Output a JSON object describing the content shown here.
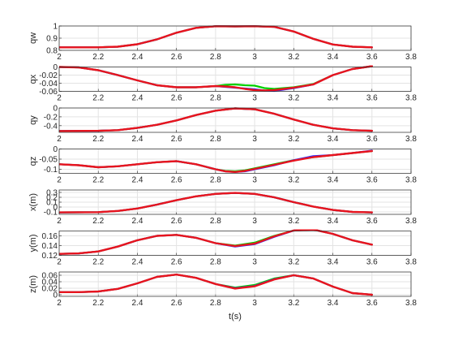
{
  "chart_data": {
    "type": "line",
    "xlabel": "t(s)",
    "xlim": [
      2,
      3.8
    ],
    "xticks": [
      "2",
      "2.2",
      "2.4",
      "2.6",
      "2.8",
      "3",
      "3.2",
      "3.4",
      "3.6",
      "3.8"
    ],
    "grid": true,
    "series_colors": {
      "green": "#00d000",
      "blue": "#2a2aff",
      "red": "#e8141e"
    },
    "panels": [
      {
        "ylabel": "qw",
        "ylim": [
          0.8,
          1
        ],
        "yticks": [
          "0.8",
          "0.9",
          "1"
        ],
        "x": [
          2.0,
          2.2,
          2.3,
          2.4,
          2.5,
          2.6,
          2.7,
          2.8,
          2.9,
          3.0,
          3.1,
          3.2,
          3.3,
          3.4,
          3.5,
          3.6
        ],
        "series": [
          {
            "color": "green",
            "values": [
              0.825,
              0.825,
              0.83,
              0.85,
              0.89,
              0.945,
              0.985,
              0.998,
              0.997,
              0.998,
              0.993,
              0.955,
              0.895,
              0.848,
              0.83,
              0.825
            ]
          },
          {
            "color": "blue",
            "values": [
              0.825,
              0.825,
              0.83,
              0.85,
              0.89,
              0.945,
              0.985,
              0.998,
              0.997,
              0.998,
              0.993,
              0.955,
              0.895,
              0.848,
              0.83,
              0.825
            ]
          },
          {
            "color": "red",
            "values": [
              0.825,
              0.825,
              0.83,
              0.85,
              0.89,
              0.945,
              0.985,
              0.998,
              0.997,
              0.998,
              0.993,
              0.955,
              0.895,
              0.848,
              0.83,
              0.825
            ]
          }
        ]
      },
      {
        "ylabel": "qx",
        "ylim": [
          -0.06,
          0
        ],
        "yticks": [
          "-0.06",
          "-0.04",
          "-0.02",
          "0"
        ],
        "x": [
          2.0,
          2.1,
          2.2,
          2.3,
          2.4,
          2.5,
          2.6,
          2.7,
          2.8,
          2.85,
          2.9,
          2.95,
          3.0,
          3.05,
          3.1,
          3.2,
          3.3,
          3.4,
          3.5,
          3.6
        ],
        "series": [
          {
            "color": "green",
            "values": [
              0.0,
              -0.001,
              -0.008,
              -0.02,
              -0.033,
              -0.045,
              -0.05,
              -0.05,
              -0.047,
              -0.044,
              -0.043,
              -0.045,
              -0.046,
              -0.052,
              -0.054,
              -0.05,
              -0.042,
              -0.02,
              -0.005,
              0.002
            ]
          },
          {
            "color": "blue",
            "values": [
              0.0,
              -0.001,
              -0.008,
              -0.02,
              -0.033,
              -0.045,
              -0.05,
              -0.05,
              -0.047,
              -0.049,
              -0.051,
              -0.053,
              -0.055,
              -0.058,
              -0.059,
              -0.052,
              -0.043,
              -0.02,
              -0.005,
              0.002
            ]
          },
          {
            "color": "red",
            "values": [
              0.0,
              -0.001,
              -0.008,
              -0.02,
              -0.033,
              -0.045,
              -0.05,
              -0.05,
              -0.047,
              -0.048,
              -0.05,
              -0.054,
              -0.057,
              -0.058,
              -0.057,
              -0.051,
              -0.043,
              -0.02,
              -0.005,
              0.002
            ]
          }
        ]
      },
      {
        "ylabel": "qy",
        "ylim": [
          -0.55,
          0
        ],
        "yticks": [
          "-0.4",
          "-0.2",
          "0"
        ],
        "x": [
          2.0,
          2.2,
          2.3,
          2.4,
          2.5,
          2.6,
          2.7,
          2.8,
          2.9,
          3.0,
          3.1,
          3.2,
          3.3,
          3.4,
          3.5,
          3.6
        ],
        "series": [
          {
            "color": "green",
            "values": [
              -0.52,
              -0.515,
              -0.5,
              -0.45,
              -0.38,
              -0.28,
              -0.16,
              -0.06,
              -0.01,
              -0.03,
              -0.13,
              -0.26,
              -0.38,
              -0.46,
              -0.5,
              -0.515
            ]
          },
          {
            "color": "blue",
            "values": [
              -0.52,
              -0.515,
              -0.5,
              -0.45,
              -0.38,
              -0.28,
              -0.16,
              -0.06,
              -0.01,
              -0.03,
              -0.13,
              -0.26,
              -0.38,
              -0.46,
              -0.5,
              -0.515
            ]
          },
          {
            "color": "red",
            "values": [
              -0.52,
              -0.515,
              -0.5,
              -0.45,
              -0.38,
              -0.28,
              -0.16,
              -0.06,
              -0.01,
              -0.03,
              -0.13,
              -0.26,
              -0.38,
              -0.46,
              -0.5,
              -0.515
            ]
          }
        ]
      },
      {
        "ylabel": "qz",
        "ylim": [
          -0.12,
          0
        ],
        "yticks": [
          "-0.1",
          "-0.05",
          "0"
        ],
        "x": [
          2.0,
          2.1,
          2.2,
          2.3,
          2.4,
          2.5,
          2.6,
          2.7,
          2.8,
          2.85,
          2.9,
          2.95,
          3.0,
          3.1,
          3.2,
          3.3,
          3.4,
          3.5,
          3.6
        ],
        "series": [
          {
            "color": "green",
            "values": [
              -0.075,
              -0.08,
              -0.09,
              -0.085,
              -0.075,
              -0.065,
              -0.06,
              -0.075,
              -0.1,
              -0.108,
              -0.11,
              -0.105,
              -0.095,
              -0.075,
              -0.055,
              -0.04,
              -0.03,
              -0.02,
              -0.01
            ]
          },
          {
            "color": "blue",
            "values": [
              -0.075,
              -0.08,
              -0.09,
              -0.085,
              -0.075,
              -0.065,
              -0.06,
              -0.075,
              -0.1,
              -0.11,
              -0.113,
              -0.11,
              -0.1,
              -0.08,
              -0.055,
              -0.035,
              -0.03,
              -0.02,
              -0.008
            ]
          },
          {
            "color": "red",
            "values": [
              -0.075,
              -0.08,
              -0.09,
              -0.085,
              -0.075,
              -0.065,
              -0.06,
              -0.075,
              -0.1,
              -0.11,
              -0.113,
              -0.108,
              -0.098,
              -0.078,
              -0.057,
              -0.04,
              -0.03,
              -0.02,
              -0.01
            ]
          }
        ]
      },
      {
        "ylabel": "x(m)",
        "ylim": [
          -0.15,
          0.35
        ],
        "yticks": [
          "-0.1",
          "0",
          "0.1",
          "0.2",
          "0.3"
        ],
        "x": [
          2.0,
          2.2,
          2.3,
          2.4,
          2.5,
          2.6,
          2.7,
          2.8,
          2.9,
          3.0,
          3.1,
          3.2,
          3.3,
          3.4,
          3.5,
          3.6
        ],
        "series": [
          {
            "color": "green",
            "values": [
              -0.11,
              -0.105,
              -0.08,
              -0.03,
              0.05,
              0.14,
              0.22,
              0.27,
              0.29,
              0.27,
              0.2,
              0.1,
              0.01,
              -0.06,
              -0.1,
              -0.11
            ]
          },
          {
            "color": "blue",
            "values": [
              -0.11,
              -0.105,
              -0.08,
              -0.03,
              0.05,
              0.14,
              0.22,
              0.27,
              0.29,
              0.27,
              0.2,
              0.1,
              0.01,
              -0.06,
              -0.1,
              -0.11
            ]
          },
          {
            "color": "red",
            "values": [
              -0.11,
              -0.105,
              -0.08,
              -0.03,
              0.05,
              0.14,
              0.22,
              0.27,
              0.29,
              0.27,
              0.2,
              0.1,
              0.01,
              -0.06,
              -0.1,
              -0.11
            ]
          }
        ]
      },
      {
        "ylabel": "y(m)",
        "ylim": [
          0.12,
          0.17
        ],
        "yticks": [
          "0.12",
          "0.14",
          "0.16"
        ],
        "x": [
          2.0,
          2.1,
          2.2,
          2.3,
          2.4,
          2.5,
          2.6,
          2.7,
          2.8,
          2.9,
          3.0,
          3.1,
          3.2,
          3.3,
          3.4,
          3.5,
          3.6
        ],
        "series": [
          {
            "color": "green",
            "values": [
              0.123,
              0.124,
              0.128,
              0.138,
              0.151,
              0.16,
              0.162,
              0.156,
              0.145,
              0.14,
              0.146,
              0.16,
              0.171,
              0.173,
              0.164,
              0.151,
              0.142
            ]
          },
          {
            "color": "blue",
            "values": [
              0.123,
              0.124,
              0.128,
              0.138,
              0.151,
              0.16,
              0.162,
              0.156,
              0.145,
              0.138,
              0.143,
              0.158,
              0.171,
              0.173,
              0.164,
              0.151,
              0.142
            ]
          },
          {
            "color": "red",
            "values": [
              0.123,
              0.124,
              0.128,
              0.138,
              0.151,
              0.16,
              0.162,
              0.156,
              0.145,
              0.139,
              0.144,
              0.159,
              0.171,
              0.173,
              0.164,
              0.151,
              0.142
            ]
          }
        ]
      },
      {
        "ylabel": "z(m)",
        "ylim": [
          -0.005,
          0.07
        ],
        "yticks": [
          "0",
          "0.02",
          "0.04",
          "0.06"
        ],
        "x": [
          2.0,
          2.1,
          2.2,
          2.3,
          2.4,
          2.5,
          2.6,
          2.7,
          2.8,
          2.9,
          3.0,
          3.1,
          3.2,
          3.3,
          3.4,
          3.5,
          3.6
        ],
        "series": [
          {
            "color": "green",
            "values": [
              0.008,
              0.008,
              0.01,
              0.018,
              0.035,
              0.055,
              0.062,
              0.052,
              0.033,
              0.022,
              0.03,
              0.05,
              0.06,
              0.05,
              0.025,
              0.005,
              0.0
            ]
          },
          {
            "color": "blue",
            "values": [
              0.008,
              0.008,
              0.01,
              0.018,
              0.035,
              0.055,
              0.062,
              0.052,
              0.033,
              0.02,
              0.027,
              0.048,
              0.06,
              0.05,
              0.025,
              0.005,
              0.0
            ]
          },
          {
            "color": "red",
            "values": [
              0.008,
              0.008,
              0.01,
              0.018,
              0.035,
              0.055,
              0.062,
              0.052,
              0.033,
              0.019,
              0.026,
              0.047,
              0.06,
              0.05,
              0.025,
              0.005,
              0.0
            ]
          }
        ]
      }
    ]
  }
}
